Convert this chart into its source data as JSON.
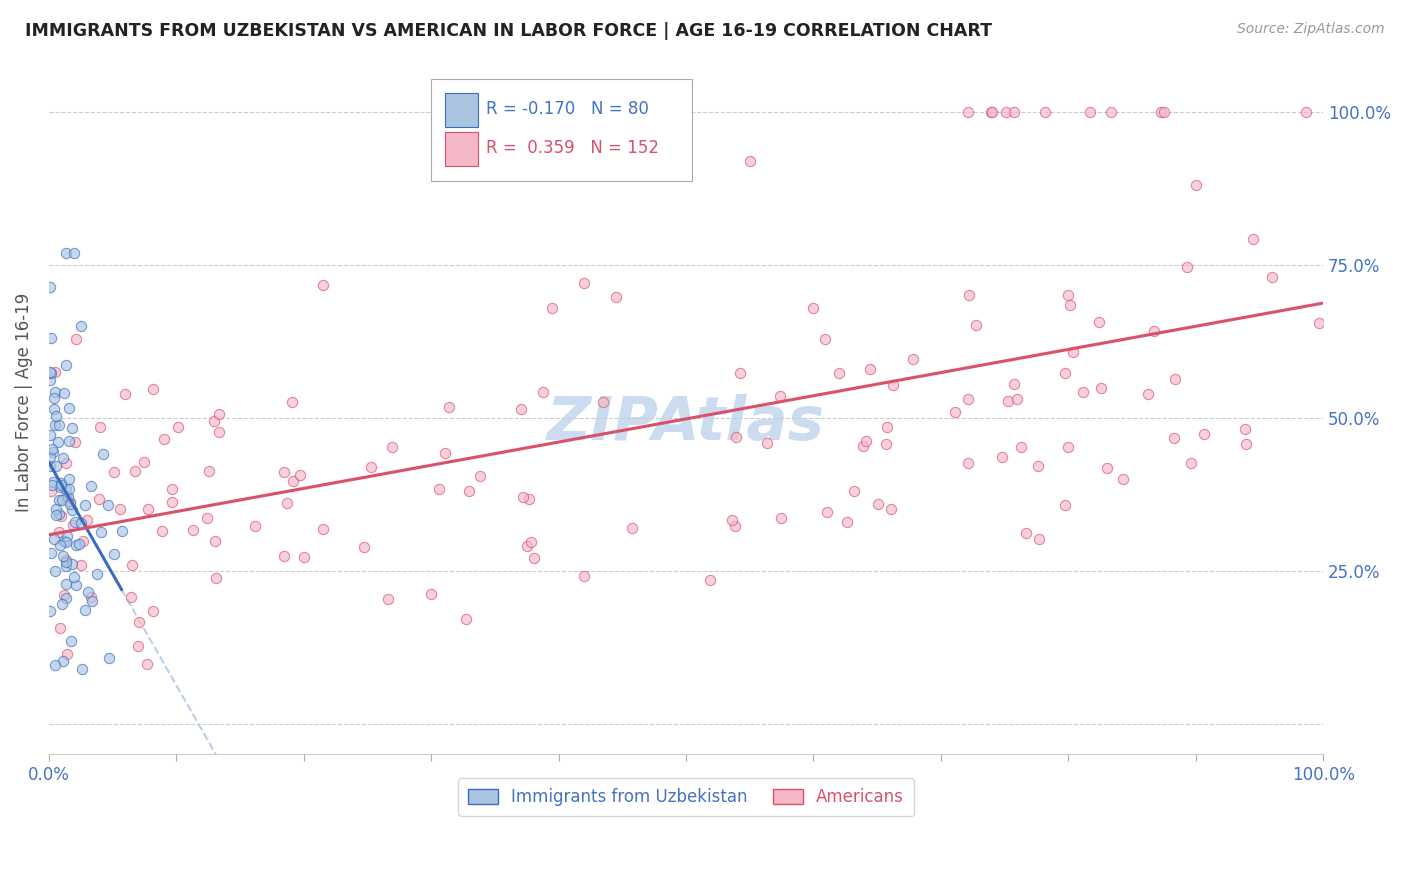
{
  "title": "IMMIGRANTS FROM UZBEKISTAN VS AMERICAN IN LABOR FORCE | AGE 16-19 CORRELATION CHART",
  "source": "Source: ZipAtlas.com",
  "ylabel": "In Labor Force | Age 16-19",
  "legend_blue_r": "-0.170",
  "legend_blue_n": "80",
  "legend_pink_r": "0.359",
  "legend_pink_n": "152",
  "legend_label_blue": "Immigrants from Uzbekistan",
  "legend_label_pink": "Americans",
  "blue_color": "#aac4e2",
  "pink_color": "#f5b8c8",
  "trendline_blue_color": "#3a6bbf",
  "trendline_pink_color": "#d9506a",
  "trendline_blue_dash_color": "#b8cfe8",
  "axis_label_color": "#4472c4",
  "title_color": "#222222",
  "watermark_color": "#ccdcf0",
  "xlim": [
    0.0,
    1.0
  ],
  "ylim": [
    -0.05,
    1.1
  ],
  "background_color": "#ffffff",
  "figsize": [
    14.06,
    8.92
  ],
  "point_size": 55,
  "point_alpha": 0.65,
  "point_linewidth": 0.8
}
